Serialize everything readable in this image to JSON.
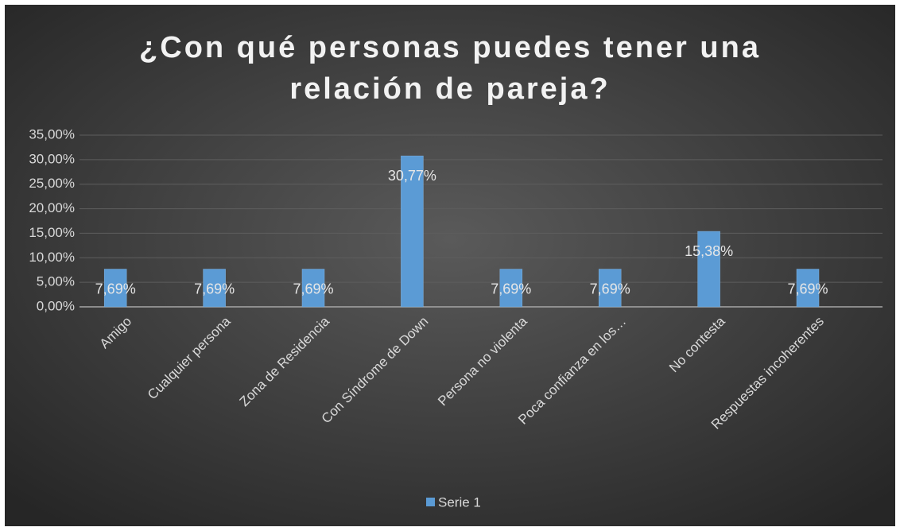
{
  "chart_data": {
    "type": "bar",
    "title": [
      "¿Con qué personas puedes tener una",
      "relación de pareja?"
    ],
    "categories": [
      "Amigo",
      "Cualquier persona",
      "Zona de Residencia",
      "Con Síndrome de Down",
      "Persona no violenta",
      "Poca confianza en los…",
      "No contesta",
      "Respuestas incoherentes"
    ],
    "series": [
      {
        "name": "Serie 1",
        "color": "#5b9bd5",
        "values": [
          7.69,
          7.69,
          7.69,
          30.77,
          7.69,
          7.69,
          15.38,
          7.69
        ],
        "value_labels": [
          "7,69%",
          "7,69%",
          "7,69%",
          "30,77%",
          "7,69%",
          "7,69%",
          "15,38%",
          "7,69%"
        ]
      }
    ],
    "ylim": [
      0,
      35
    ],
    "yticks": [
      {
        "value": 0,
        "label": "0,00%"
      },
      {
        "value": 5,
        "label": "5,00%"
      },
      {
        "value": 10,
        "label": "10,00%"
      },
      {
        "value": 15,
        "label": "15,00%"
      },
      {
        "value": 20,
        "label": "20,00%"
      },
      {
        "value": 25,
        "label": "25,00%"
      },
      {
        "value": 30,
        "label": "30,00%"
      },
      {
        "value": 35,
        "label": "35,00%"
      }
    ],
    "grid": true,
    "legend": "bottom"
  }
}
